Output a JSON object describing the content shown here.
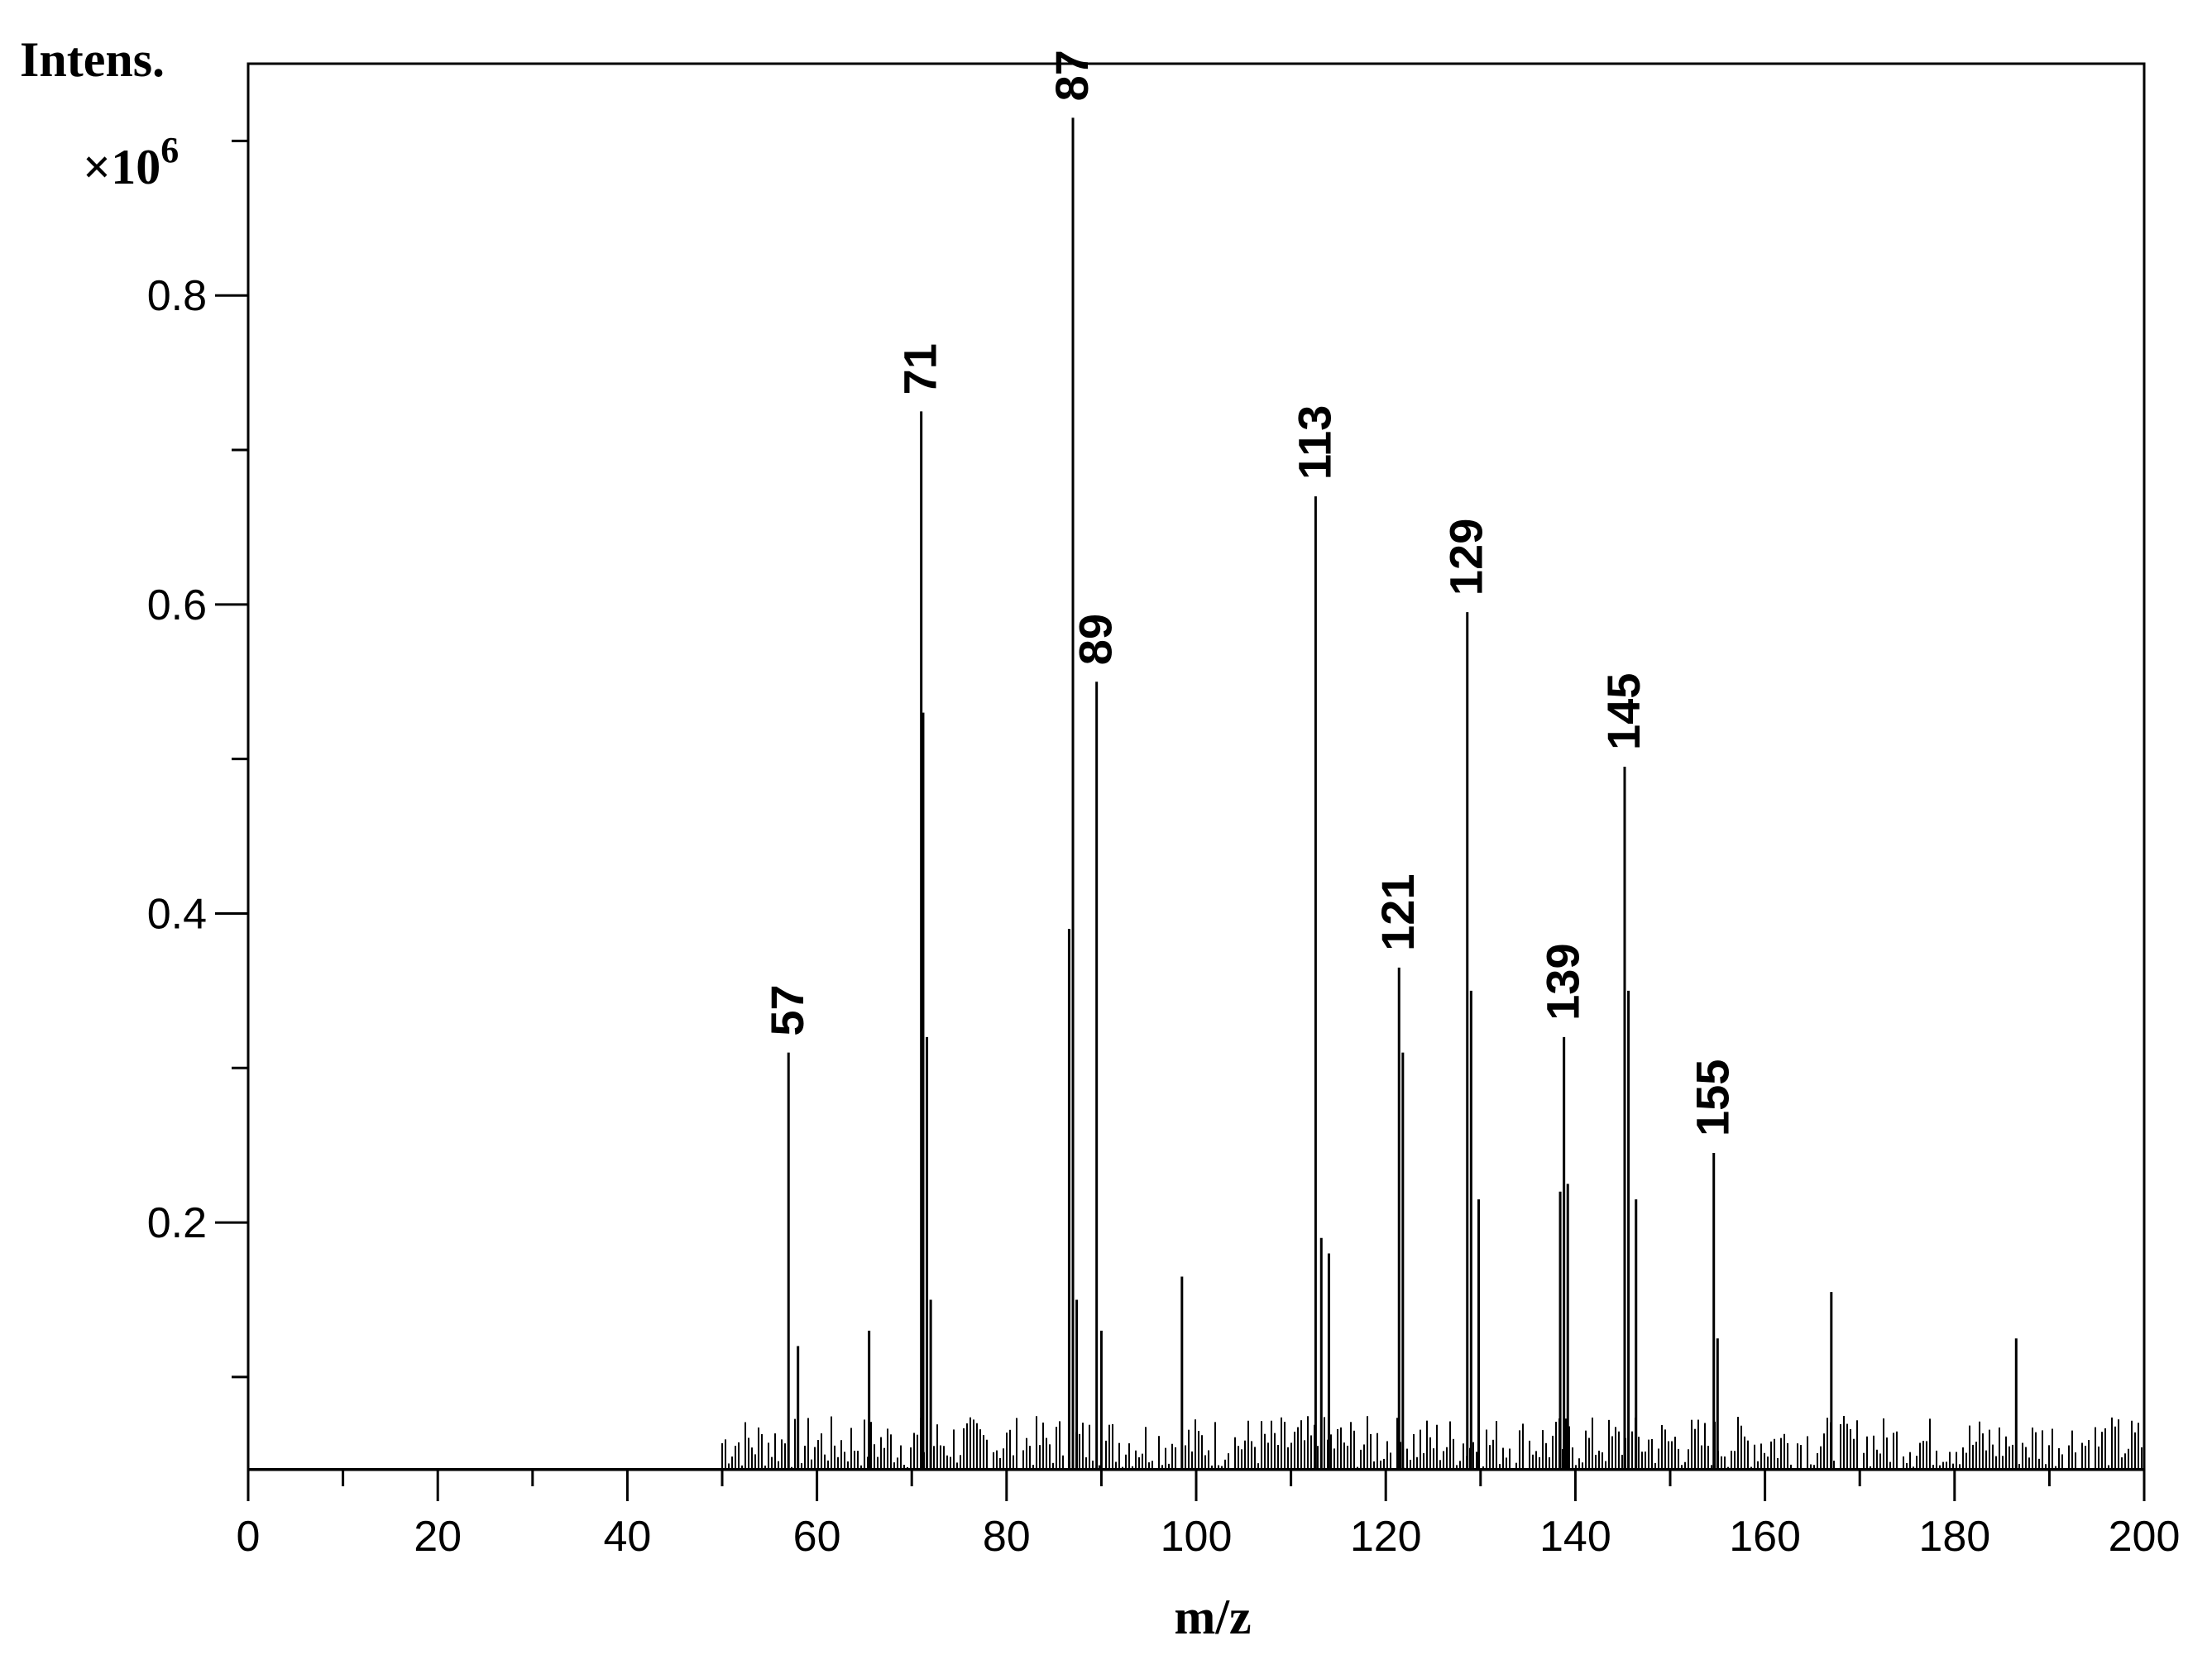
{
  "chart_data": {
    "type": "bar",
    "title": "",
    "xlabel": "m/z",
    "ylabel": "Intens.",
    "y_multiplier": "×10",
    "y_multiplier_exp": "6",
    "xlim": [
      0,
      200
    ],
    "ylim": [
      0.04,
      0.95
    ],
    "x_ticks": [
      0,
      20,
      40,
      60,
      80,
      100,
      120,
      140,
      160,
      180,
      200
    ],
    "x_tick_labels": [
      "0",
      "20",
      "40",
      "60",
      "80",
      "100",
      "120",
      "140",
      "160",
      "180",
      "200"
    ],
    "y_ticks": [
      0.2,
      0.4,
      0.6,
      0.8
    ],
    "y_tick_labels": [
      "0.2",
      "0.4",
      "0.6",
      "0.8"
    ],
    "grid": false,
    "peaks": [
      {
        "x": 57,
        "y": 0.31
      },
      {
        "x": 58,
        "y": 0.12
      },
      {
        "x": 65.5,
        "y": 0.13
      },
      {
        "x": 71,
        "y": 0.725
      },
      {
        "x": 71.2,
        "y": 0.53
      },
      {
        "x": 71.6,
        "y": 0.32
      },
      {
        "x": 72,
        "y": 0.15
      },
      {
        "x": 86.6,
        "y": 0.39
      },
      {
        "x": 87,
        "y": 0.915
      },
      {
        "x": 87.4,
        "y": 0.15
      },
      {
        "x": 89.5,
        "y": 0.55
      },
      {
        "x": 90,
        "y": 0.13
      },
      {
        "x": 98.5,
        "y": 0.165
      },
      {
        "x": 112.6,
        "y": 0.67
      },
      {
        "x": 113.2,
        "y": 0.19
      },
      {
        "x": 114,
        "y": 0.18
      },
      {
        "x": 121.4,
        "y": 0.365
      },
      {
        "x": 121.8,
        "y": 0.31
      },
      {
        "x": 128.6,
        "y": 0.595
      },
      {
        "x": 129,
        "y": 0.35
      },
      {
        "x": 129.8,
        "y": 0.215
      },
      {
        "x": 138.4,
        "y": 0.22
      },
      {
        "x": 138.8,
        "y": 0.32
      },
      {
        "x": 139.2,
        "y": 0.225
      },
      {
        "x": 145.2,
        "y": 0.495
      },
      {
        "x": 145.6,
        "y": 0.35
      },
      {
        "x": 146.4,
        "y": 0.215
      },
      {
        "x": 154.6,
        "y": 0.245
      },
      {
        "x": 155,
        "y": 0.125
      },
      {
        "x": 167,
        "y": 0.155
      },
      {
        "x": 186.5,
        "y": 0.125
      }
    ],
    "peak_labels": [
      {
        "x": 57,
        "y": 0.31,
        "text": "57"
      },
      {
        "x": 71,
        "y": 0.725,
        "text": "71"
      },
      {
        "x": 87,
        "y": 0.915,
        "text": "87"
      },
      {
        "x": 89.5,
        "y": 0.55,
        "text": "89"
      },
      {
        "x": 112.6,
        "y": 0.67,
        "text": "113"
      },
      {
        "x": 121.4,
        "y": 0.365,
        "text": "121"
      },
      {
        "x": 128.6,
        "y": 0.595,
        "text": "129"
      },
      {
        "x": 138.8,
        "y": 0.32,
        "text": "139"
      },
      {
        "x": 145.2,
        "y": 0.495,
        "text": "145"
      },
      {
        "x": 154.6,
        "y": 0.245,
        "text": "155"
      }
    ],
    "noise_x_range": [
      50,
      200
    ],
    "noise_y_max": 0.075
  }
}
